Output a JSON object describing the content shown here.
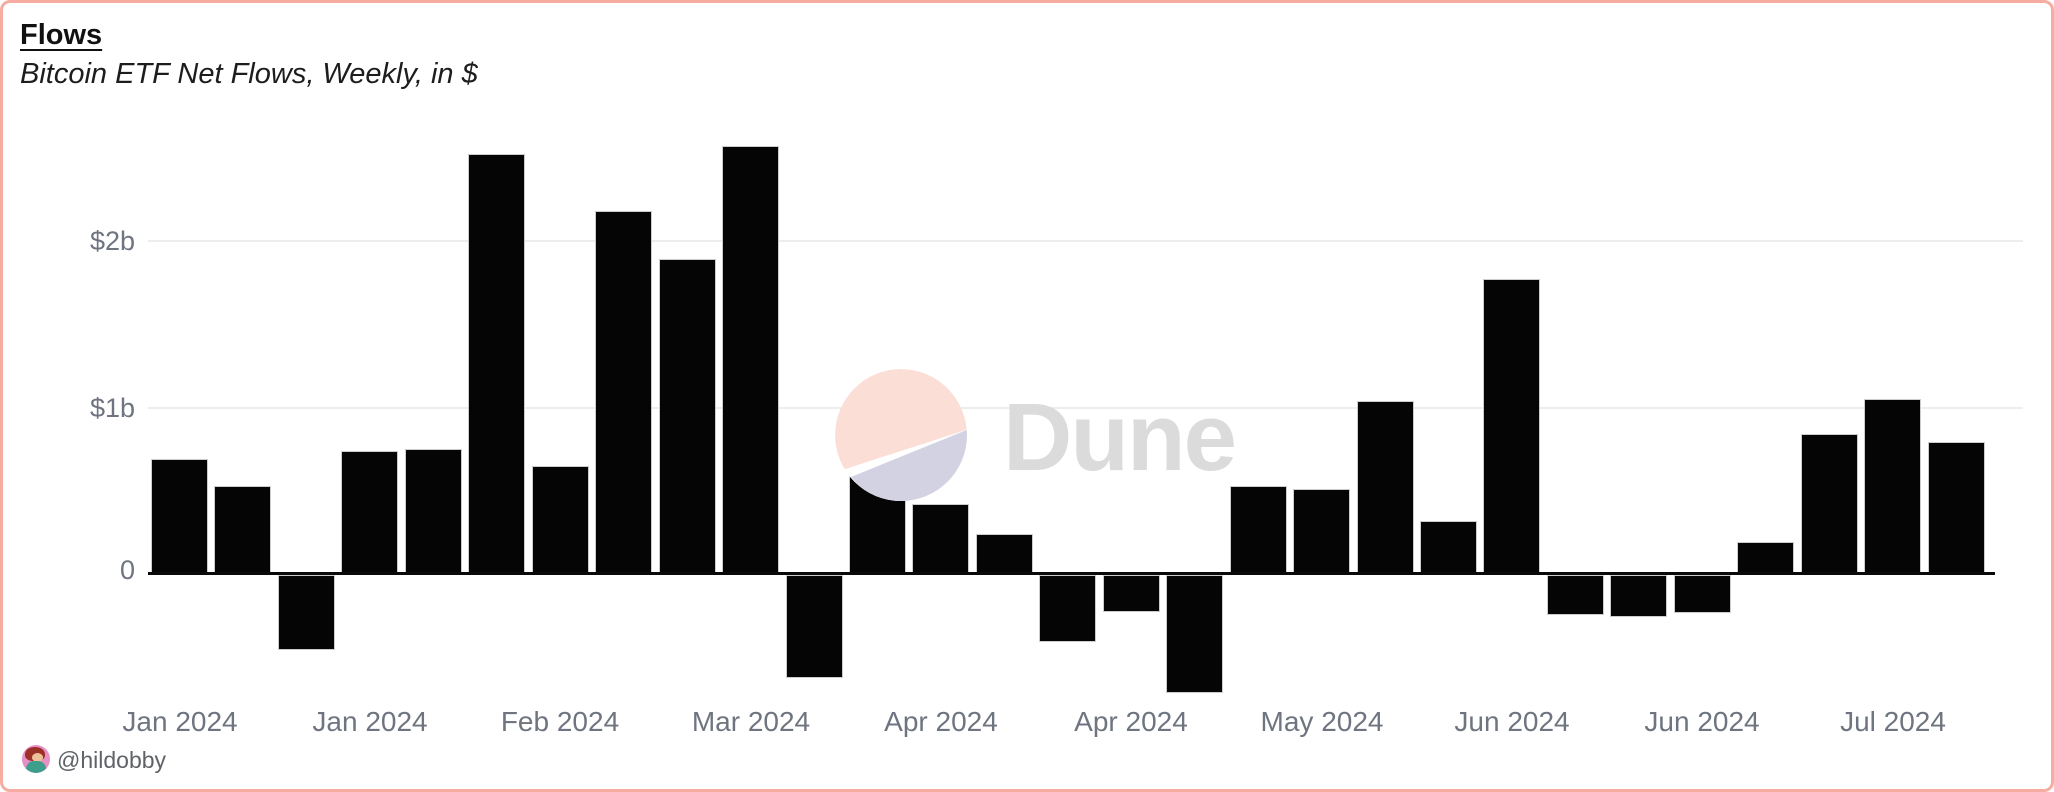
{
  "header": {
    "title": "Flows",
    "subtitle": "Bitcoin ETF Net Flows, Weekly, in $"
  },
  "watermark": {
    "brand": "Dune"
  },
  "footer": {
    "author": "@hildobby"
  },
  "colors": {
    "card_border": "#f6aca1",
    "bar": "#050505",
    "gridline": "#ededed",
    "axis_label": "#6e7480",
    "watermark_peach": "#fbdfd7",
    "watermark_lavender": "#d2d2e3",
    "watermark_text": "#dbdbdb"
  },
  "chart_data": {
    "type": "bar",
    "title": "Flows",
    "subtitle": "Bitcoin ETF Net Flows, Weekly, in $",
    "unit": "USD billions",
    "xlabel": "",
    "ylabel": "",
    "grid": "horizontal",
    "legend": "none",
    "ylim": [
      -0.78,
      2.85
    ],
    "yticks": [
      {
        "value": 2,
        "label": "$2b"
      },
      {
        "value": 1,
        "label": "$1b"
      },
      {
        "value": 0,
        "label": "0"
      }
    ],
    "values": [
      0.69,
      0.53,
      -0.45,
      0.74,
      0.75,
      2.52,
      0.65,
      2.18,
      1.89,
      2.57,
      -0.62,
      0.62,
      0.42,
      0.24,
      -0.4,
      -0.22,
      -0.71,
      0.53,
      0.51,
      1.04,
      0.32,
      1.77,
      -0.24,
      -0.25,
      -0.23,
      0.19,
      0.84,
      1.05,
      0.79
    ],
    "xticks": [
      {
        "bar_index": 0,
        "label": "Jan 2024"
      },
      {
        "bar_index": 3,
        "label": "Jan 2024"
      },
      {
        "bar_index": 6,
        "label": "Feb 2024"
      },
      {
        "bar_index": 9,
        "label": "Mar 2024"
      },
      {
        "bar_index": 12,
        "label": "Apr 2024"
      },
      {
        "bar_index": 15,
        "label": "Apr 2024"
      },
      {
        "bar_index": 18,
        "label": "May 2024"
      },
      {
        "bar_index": 21,
        "label": "Jun 2024"
      },
      {
        "bar_index": 24,
        "label": "Jun 2024"
      },
      {
        "bar_index": 27,
        "label": "Jul 2024"
      }
    ]
  }
}
